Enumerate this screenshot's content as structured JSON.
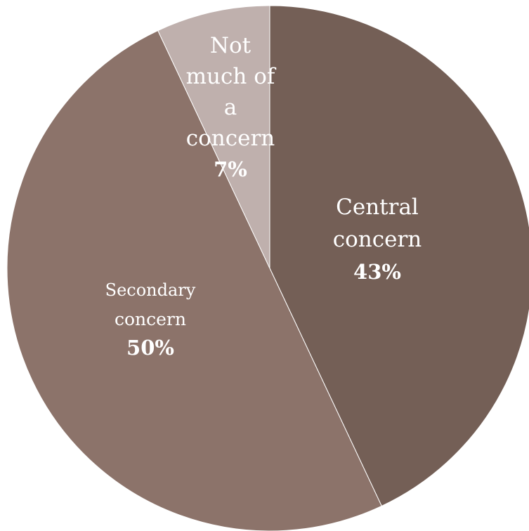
{
  "chart_data": {
    "type": "pie",
    "title": "",
    "start_angle_deg": 0,
    "direction": "clockwise",
    "slices": [
      {
        "label_lines": [
          "Central",
          "concern"
        ],
        "value": 43,
        "percent_label": "43%",
        "color": "#745f56"
      },
      {
        "label_lines": [
          "Secondary",
          "concern"
        ],
        "value": 50,
        "percent_label": "50%",
        "color": "#8c736a"
      },
      {
        "label_lines": [
          "Not",
          "much of",
          "a",
          "concern"
        ],
        "value": 7,
        "percent_label": "7%",
        "color": "#bfb0ad"
      }
    ],
    "legend": "none"
  }
}
